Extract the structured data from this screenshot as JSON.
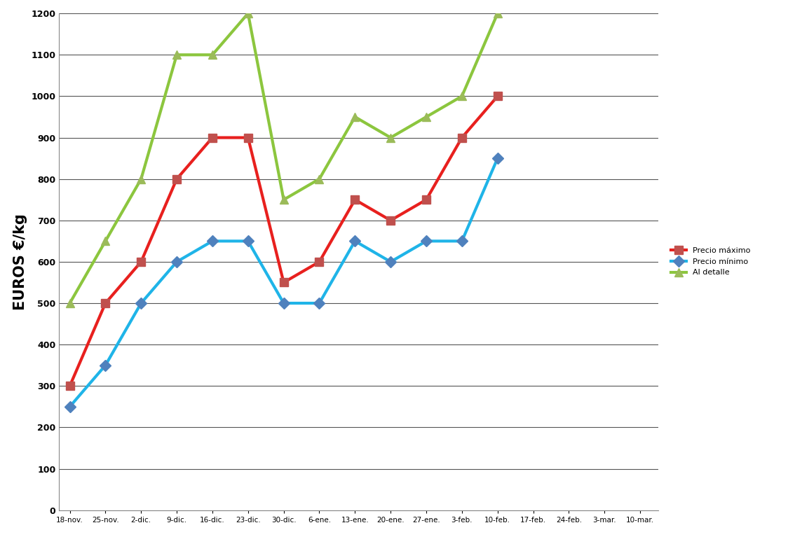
{
  "chart_data": {
    "type": "line",
    "y_label": "EUROS €/kg",
    "categories": [
      "18-nov.",
      "25-nov.",
      "2-dic.",
      "9-dic.",
      "16-dic.",
      "23-dic.",
      "30-dic.",
      "6-ene.",
      "13-ene.",
      "20-ene.",
      "27-ene.",
      "3-feb.",
      "10-feb.",
      "17-feb.",
      "24-feb.",
      "3-mar.",
      "10-mar."
    ],
    "series": [
      {
        "name": "Precio máximo",
        "color": "#e8201e",
        "marker": "square",
        "values": [
          300,
          500,
          600,
          800,
          900,
          900,
          550,
          600,
          750,
          700,
          750,
          900,
          1000,
          null,
          null,
          null,
          null
        ]
      },
      {
        "name": "Precio mínimo",
        "color": "#1fb4e8",
        "marker": "diamond",
        "values": [
          250,
          350,
          500,
          600,
          650,
          650,
          500,
          500,
          650,
          600,
          650,
          650,
          850,
          null,
          null,
          null,
          null
        ]
      },
      {
        "name": "Al detalle",
        "color": "#8cc63e",
        "marker": "triangle",
        "values": [
          500,
          650,
          800,
          1100,
          1100,
          1200,
          750,
          800,
          950,
          900,
          950,
          1000,
          1200,
          null,
          null,
          null,
          null
        ]
      }
    ],
    "ylim": [
      0,
      1200
    ],
    "yticks": [
      0,
      100,
      200,
      300,
      400,
      500,
      600,
      700,
      800,
      900,
      1000,
      1100,
      1200
    ],
    "grid": true,
    "legend": "right"
  }
}
